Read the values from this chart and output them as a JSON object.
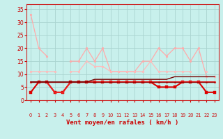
{
  "xlabel": "Vent moyen/en rafales ( km/h )",
  "xlim": [
    -0.5,
    23.5
  ],
  "ylim": [
    0,
    37
  ],
  "yticks": [
    0,
    5,
    10,
    15,
    20,
    25,
    30,
    35
  ],
  "xticks": [
    0,
    1,
    2,
    3,
    4,
    5,
    6,
    7,
    8,
    9,
    10,
    11,
    12,
    13,
    14,
    15,
    16,
    17,
    18,
    19,
    20,
    21,
    22,
    23
  ],
  "bg_color": "#c8f0ec",
  "grid_color": "#aad4d0",
  "series": [
    {
      "y": [
        33,
        20,
        17,
        null,
        null,
        15,
        15,
        20,
        15,
        20,
        11,
        11,
        11,
        11,
        15,
        15,
        20,
        17,
        20,
        20,
        15,
        20,
        9,
        9
      ],
      "color": "#ffaaaa",
      "lw": 0.9,
      "marker": "o",
      "ms": 2.0
    },
    {
      "y": [
        11,
        11,
        11,
        11,
        null,
        11,
        11,
        15,
        13,
        13,
        11,
        11,
        11,
        11,
        11,
        15,
        11,
        11,
        11,
        11,
        11,
        null,
        11,
        null
      ],
      "color": "#ffbbbb",
      "lw": 0.9,
      "marker": "o",
      "ms": 2.0
    },
    {
      "y": [
        3,
        7,
        7,
        3,
        3,
        7,
        7,
        7,
        7,
        7,
        7,
        7,
        7,
        7,
        7,
        7,
        5,
        5,
        5,
        7,
        7,
        7,
        3,
        3
      ],
      "color": "#dd0000",
      "lw": 1.5,
      "marker": "s",
      "ms": 2.2
    },
    {
      "y": [
        7,
        7,
        7,
        3,
        3,
        7,
        7,
        7,
        7,
        7,
        7,
        7,
        7,
        7,
        7,
        7,
        7,
        7,
        7,
        7,
        7,
        7,
        7,
        7
      ],
      "color": "#ee2222",
      "lw": 1.2,
      "marker": "o",
      "ms": 2.0
    },
    {
      "y": [
        7,
        7,
        7,
        7,
        7,
        7,
        7,
        7,
        7,
        7,
        7,
        7,
        7,
        7,
        7,
        7,
        7,
        7,
        7,
        7,
        7,
        7,
        7,
        7
      ],
      "color": "#990000",
      "lw": 1.0,
      "marker": null,
      "ms": 0
    },
    {
      "y": [
        7,
        7,
        7,
        7,
        7,
        7,
        7,
        7,
        8,
        8,
        8,
        8,
        8,
        8,
        8,
        8,
        8,
        8,
        9,
        9,
        9,
        9,
        9,
        9
      ],
      "color": "#770000",
      "lw": 1.0,
      "marker": null,
      "ms": 0
    }
  ],
  "arrows": [
    "↗",
    "↘",
    "↘",
    "→",
    "↙",
    "↘",
    "↗",
    "↗",
    "↑",
    "↑",
    "←",
    "↗",
    "↑",
    "←",
    "←",
    "↙",
    "↓",
    "↙",
    "↙",
    "↘",
    "↙",
    "↘",
    "↙",
    "↘"
  ]
}
